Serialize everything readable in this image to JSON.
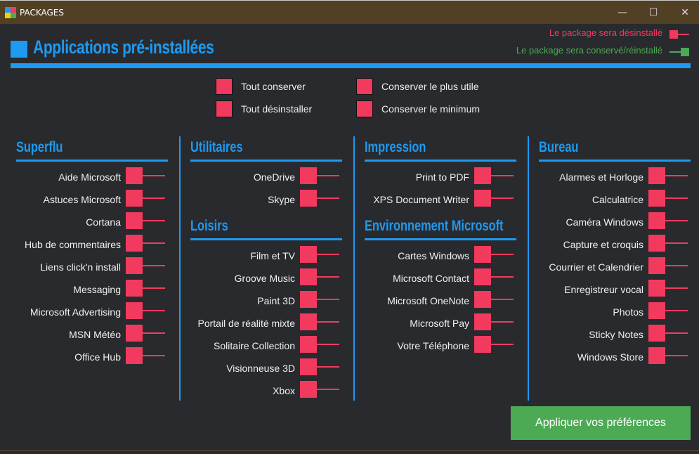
{
  "window": {
    "title": "PACKAGES",
    "minimize": "—",
    "maximize": "☐",
    "close": "✕"
  },
  "header": {
    "title": "Applications pré-installées"
  },
  "legend": {
    "uninstall": "Le package sera désinstallé",
    "keep": "Le package sera conservé/réinstallé"
  },
  "colors": {
    "accent": "#1e9af0",
    "uninstall": "#f23a5e",
    "keep": "#4caa54"
  },
  "options": [
    "Tout conserver",
    "Tout désinstaller",
    "Conserver le plus utile",
    "Conserver le minimum"
  ],
  "columns": [
    {
      "sections": [
        {
          "title": "Superflu",
          "items": [
            "Aide Microsoft",
            "Astuces Microsoft",
            "Cortana",
            "Hub de commentaires",
            "Liens click'n install",
            "Messaging",
            "Microsoft Advertising",
            "MSN Météo",
            "Office Hub"
          ]
        }
      ]
    },
    {
      "sections": [
        {
          "title": "Utilitaires",
          "items": [
            "OneDrive",
            "Skype"
          ]
        },
        {
          "title": "Loisirs",
          "items": [
            "Film et TV",
            "Groove Music",
            "Paint 3D",
            "Portail de réalité mixte",
            "Solitaire Collection",
            "Visionneuse 3D",
            "Xbox"
          ]
        }
      ]
    },
    {
      "sections": [
        {
          "title": "Impression",
          "items": [
            "Print to PDF",
            "XPS Document Writer"
          ]
        },
        {
          "title": "Environnement Microsoft",
          "items": [
            "Cartes Windows",
            "Microsoft Contact",
            "Microsoft OneNote",
            "Microsoft Pay",
            "Votre Téléphone"
          ]
        }
      ]
    },
    {
      "sections": [
        {
          "title": "Bureau",
          "items": [
            "Alarmes et Horloge",
            "Calculatrice",
            "Caméra Windows",
            "Capture et croquis",
            "Courrier et Calendrier",
            "Enregistreur vocal",
            "Photos",
            "Sticky Notes",
            "Windows Store"
          ]
        }
      ]
    }
  ],
  "apply_label": "Appliquer vos préférences"
}
